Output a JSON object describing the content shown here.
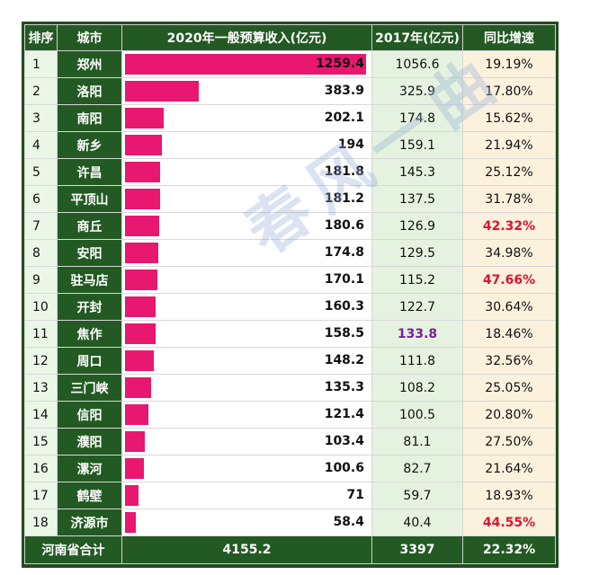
{
  "table": {
    "headers": {
      "rank": "排序",
      "city": "城市",
      "revenue_2020": "2020年一般预算收入(亿元)",
      "revenue_2017": "2017年(亿元)",
      "growth": "同比增速"
    },
    "rows": [
      {
        "rank": "1",
        "city": "郑州",
        "revenue_2020": "1259.4",
        "revenue_2017": "1056.6",
        "growth": "19.19%"
      },
      {
        "rank": "2",
        "city": "洛阳",
        "revenue_2020": "383.9",
        "revenue_2017": "325.9",
        "growth": "17.80%"
      },
      {
        "rank": "3",
        "city": "南阳",
        "revenue_2020": "202.1",
        "revenue_2017": "174.8",
        "growth": "15.62%"
      },
      {
        "rank": "4",
        "city": "新乡",
        "revenue_2020": "194",
        "revenue_2017": "159.1",
        "growth": "21.94%"
      },
      {
        "rank": "5",
        "city": "许昌",
        "revenue_2020": "181.8",
        "revenue_2017": "145.3",
        "growth": "25.12%"
      },
      {
        "rank": "6",
        "city": "平顶山",
        "revenue_2020": "181.2",
        "revenue_2017": "137.5",
        "growth": "31.78%"
      },
      {
        "rank": "7",
        "city": "商丘",
        "revenue_2020": "180.6",
        "revenue_2017": "126.9",
        "growth": "42.32%",
        "growth_highlight": true
      },
      {
        "rank": "8",
        "city": "安阳",
        "revenue_2020": "174.8",
        "revenue_2017": "129.5",
        "growth": "34.98%"
      },
      {
        "rank": "9",
        "city": "驻马店",
        "revenue_2020": "170.1",
        "revenue_2017": "115.2",
        "growth": "47.66%",
        "growth_highlight": true
      },
      {
        "rank": "10",
        "city": "开封",
        "revenue_2020": "160.3",
        "revenue_2017": "122.7",
        "growth": "30.64%"
      },
      {
        "rank": "11",
        "city": "焦作",
        "revenue_2020": "158.5",
        "revenue_2017": "133.8",
        "growth": "18.46%",
        "revenue_2017_highlight": true
      },
      {
        "rank": "12",
        "city": "周口",
        "revenue_2020": "148.2",
        "revenue_2017": "111.8",
        "growth": "32.56%"
      },
      {
        "rank": "13",
        "city": "三门峡",
        "revenue_2020": "135.3",
        "revenue_2017": "108.2",
        "growth": "25.05%"
      },
      {
        "rank": "14",
        "city": "信阳",
        "revenue_2020": "121.4",
        "revenue_2017": "100.5",
        "growth": "20.80%"
      },
      {
        "rank": "15",
        "city": "濮阳",
        "revenue_2020": "103.4",
        "revenue_2017": "81.1",
        "growth": "27.50%"
      },
      {
        "rank": "16",
        "city": "漯河",
        "revenue_2020": "100.6",
        "revenue_2017": "82.7",
        "growth": "21.64%"
      },
      {
        "rank": "17",
        "city": "鹤壁",
        "revenue_2020": "71",
        "revenue_2017": "59.7",
        "growth": "18.93%"
      },
      {
        "rank": "18",
        "city": "济源市",
        "revenue_2020": "58.4",
        "revenue_2017": "40.4",
        "growth": "44.55%",
        "growth_highlight": true
      }
    ],
    "total": {
      "label": "河南省合计",
      "revenue_2020": "4155.2",
      "revenue_2017": "3397",
      "growth": "22.32%"
    },
    "bar_max": 1259.4
  },
  "watermark": "春风一曲",
  "colors": {
    "header_green": "#235a23",
    "bar_pink": "#e8176f",
    "col_2017_bg": "#e4f2df",
    "col_growth_bg": "#fbf1dd",
    "highlight_red": "#e0132e",
    "highlight_purple": "#7a1f9e"
  }
}
